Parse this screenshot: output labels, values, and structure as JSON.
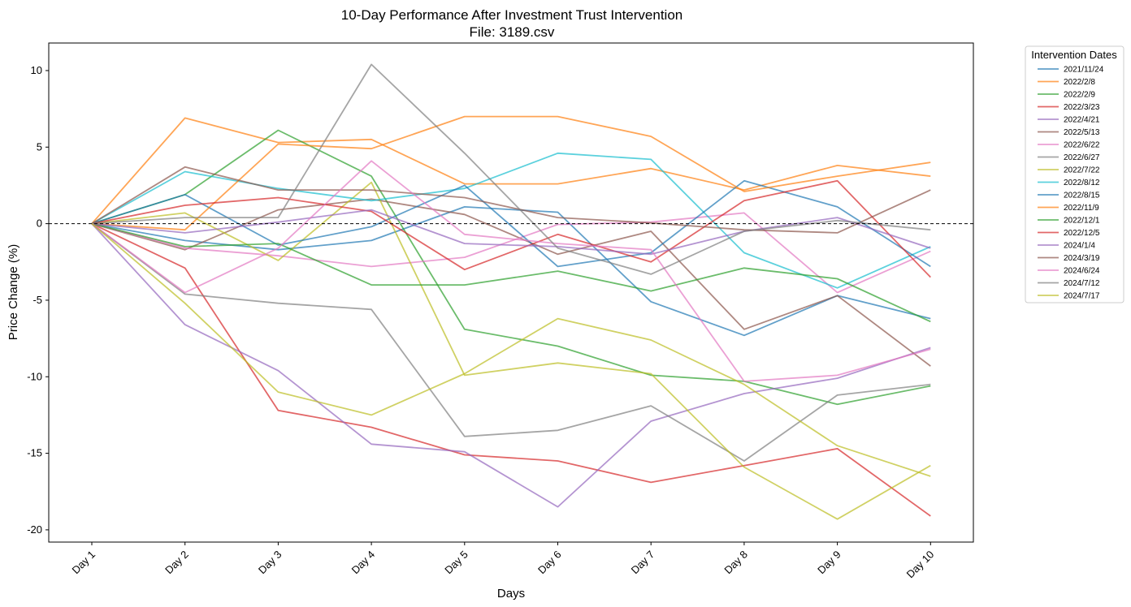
{
  "chart_data": {
    "type": "line",
    "title": "10-Day Performance After Investment Trust Intervention",
    "subtitle": "File: 3189.csv",
    "xlabel": "Days",
    "ylabel": "Price Change (%)",
    "categories": [
      "Day 1",
      "Day 2",
      "Day 3",
      "Day 4",
      "Day 5",
      "Day 6",
      "Day 7",
      "Day 8",
      "Day 9",
      "Day 10"
    ],
    "ylim": [
      -20.8,
      11.8
    ],
    "yticks": [
      -20,
      -15,
      -10,
      -5,
      0,
      5,
      10
    ],
    "zero_line": true,
    "grid": false,
    "legend": {
      "title": "Intervention Dates",
      "placement": "outside-right"
    },
    "series": [
      {
        "name": "2021/11/24",
        "color": "#1f77b4",
        "values": [
          0,
          -1.1,
          -1.7,
          -1.1,
          1.1,
          0.75,
          -5.1,
          -7.3,
          -4.7,
          -6.2
        ]
      },
      {
        "name": "2022/2/8",
        "color": "#ff7f0e",
        "values": [
          0,
          6.9,
          5.3,
          5.5,
          2.6,
          2.6,
          3.6,
          2.2,
          3.8,
          3.1
        ]
      },
      {
        "name": "2022/2/9",
        "color": "#2ca02c",
        "values": [
          0,
          1.9,
          6.1,
          3.1,
          -6.9,
          -8.0,
          -9.9,
          -10.3,
          -11.8,
          -10.6
        ]
      },
      {
        "name": "2022/3/23",
        "color": "#d62728",
        "values": [
          0,
          -2.9,
          -12.2,
          -13.3,
          -15.1,
          -15.5,
          -16.9,
          -15.8,
          -14.7,
          -19.1
        ]
      },
      {
        "name": "2022/4/21",
        "color": "#9467bd",
        "values": [
          0,
          -6.6,
          -9.6,
          -14.4,
          -14.9,
          -18.5,
          -12.9,
          -11.1,
          -10.1,
          -8.1
        ]
      },
      {
        "name": "2022/5/13",
        "color": "#8c564b",
        "values": [
          0,
          -1.7,
          0.9,
          1.6,
          0.6,
          -2.0,
          -0.5,
          -6.9,
          -4.7,
          -9.3
        ]
      },
      {
        "name": "2022/6/22",
        "color": "#e377c2",
        "values": [
          0,
          -1.6,
          -2.1,
          -2.8,
          -2.2,
          -0.05,
          0.1,
          0.7,
          -4.5,
          -1.8
        ]
      },
      {
        "name": "2022/6/27",
        "color": "#7f7f7f",
        "values": [
          0,
          -4.6,
          -5.2,
          -5.6,
          -13.9,
          -13.5,
          -11.9,
          -15.5,
          -11.2,
          -10.5
        ]
      },
      {
        "name": "2022/7/22",
        "color": "#bcbd22",
        "values": [
          0,
          0.7,
          -2.4,
          2.7,
          -9.9,
          -9.1,
          -9.8,
          -15.9,
          -19.3,
          -15.8
        ]
      },
      {
        "name": "2022/8/12",
        "color": "#17becf",
        "values": [
          0,
          3.4,
          2.3,
          1.5,
          2.3,
          4.6,
          4.2,
          -1.9,
          -4.2,
          -1.5
        ]
      },
      {
        "name": "2022/8/15",
        "color": "#1f77b4",
        "values": [
          0,
          1.9,
          -1.4,
          -0.2,
          2.5,
          -2.8,
          -1.9,
          2.8,
          1.1,
          -2.8
        ]
      },
      {
        "name": "2022/11/9",
        "color": "#ff7f0e",
        "values": [
          0,
          -0.4,
          5.2,
          4.9,
          7.0,
          7.0,
          5.7,
          2.1,
          3.1,
          4.0
        ]
      },
      {
        "name": "2022/12/1",
        "color": "#2ca02c",
        "values": [
          0,
          -1.5,
          -1.3,
          -4.0,
          -4.0,
          -3.1,
          -4.4,
          -2.9,
          -3.6,
          -6.4
        ]
      },
      {
        "name": "2022/12/5",
        "color": "#d62728",
        "values": [
          0,
          1.2,
          1.7,
          0.8,
          -3.0,
          -0.7,
          -2.5,
          1.5,
          2.8,
          -3.5
        ]
      },
      {
        "name": "2024/1/4",
        "color": "#9467bd",
        "values": [
          0,
          -0.6,
          0.1,
          0.9,
          -1.3,
          -1.5,
          -2.0,
          -0.5,
          0.4,
          -1.6
        ]
      },
      {
        "name": "2024/3/19",
        "color": "#8c564b",
        "values": [
          0,
          3.7,
          2.2,
          2.2,
          1.7,
          0.4,
          0.05,
          -0.4,
          -0.6,
          2.2
        ]
      },
      {
        "name": "2024/6/24",
        "color": "#e377c2",
        "values": [
          0,
          -4.5,
          -1.6,
          4.1,
          -0.7,
          -1.3,
          -1.7,
          -10.3,
          -9.9,
          -8.2
        ]
      },
      {
        "name": "2024/7/12",
        "color": "#7f7f7f",
        "values": [
          0,
          0.4,
          0.4,
          10.4,
          4.6,
          -1.6,
          -3.3,
          -0.5,
          0.2,
          -0.4
        ]
      },
      {
        "name": "2024/7/17",
        "color": "#bcbd22",
        "values": [
          0,
          -5.2,
          -11.0,
          -12.5,
          -9.8,
          -6.2,
          -7.6,
          -10.5,
          -14.5,
          -16.5
        ]
      }
    ]
  }
}
